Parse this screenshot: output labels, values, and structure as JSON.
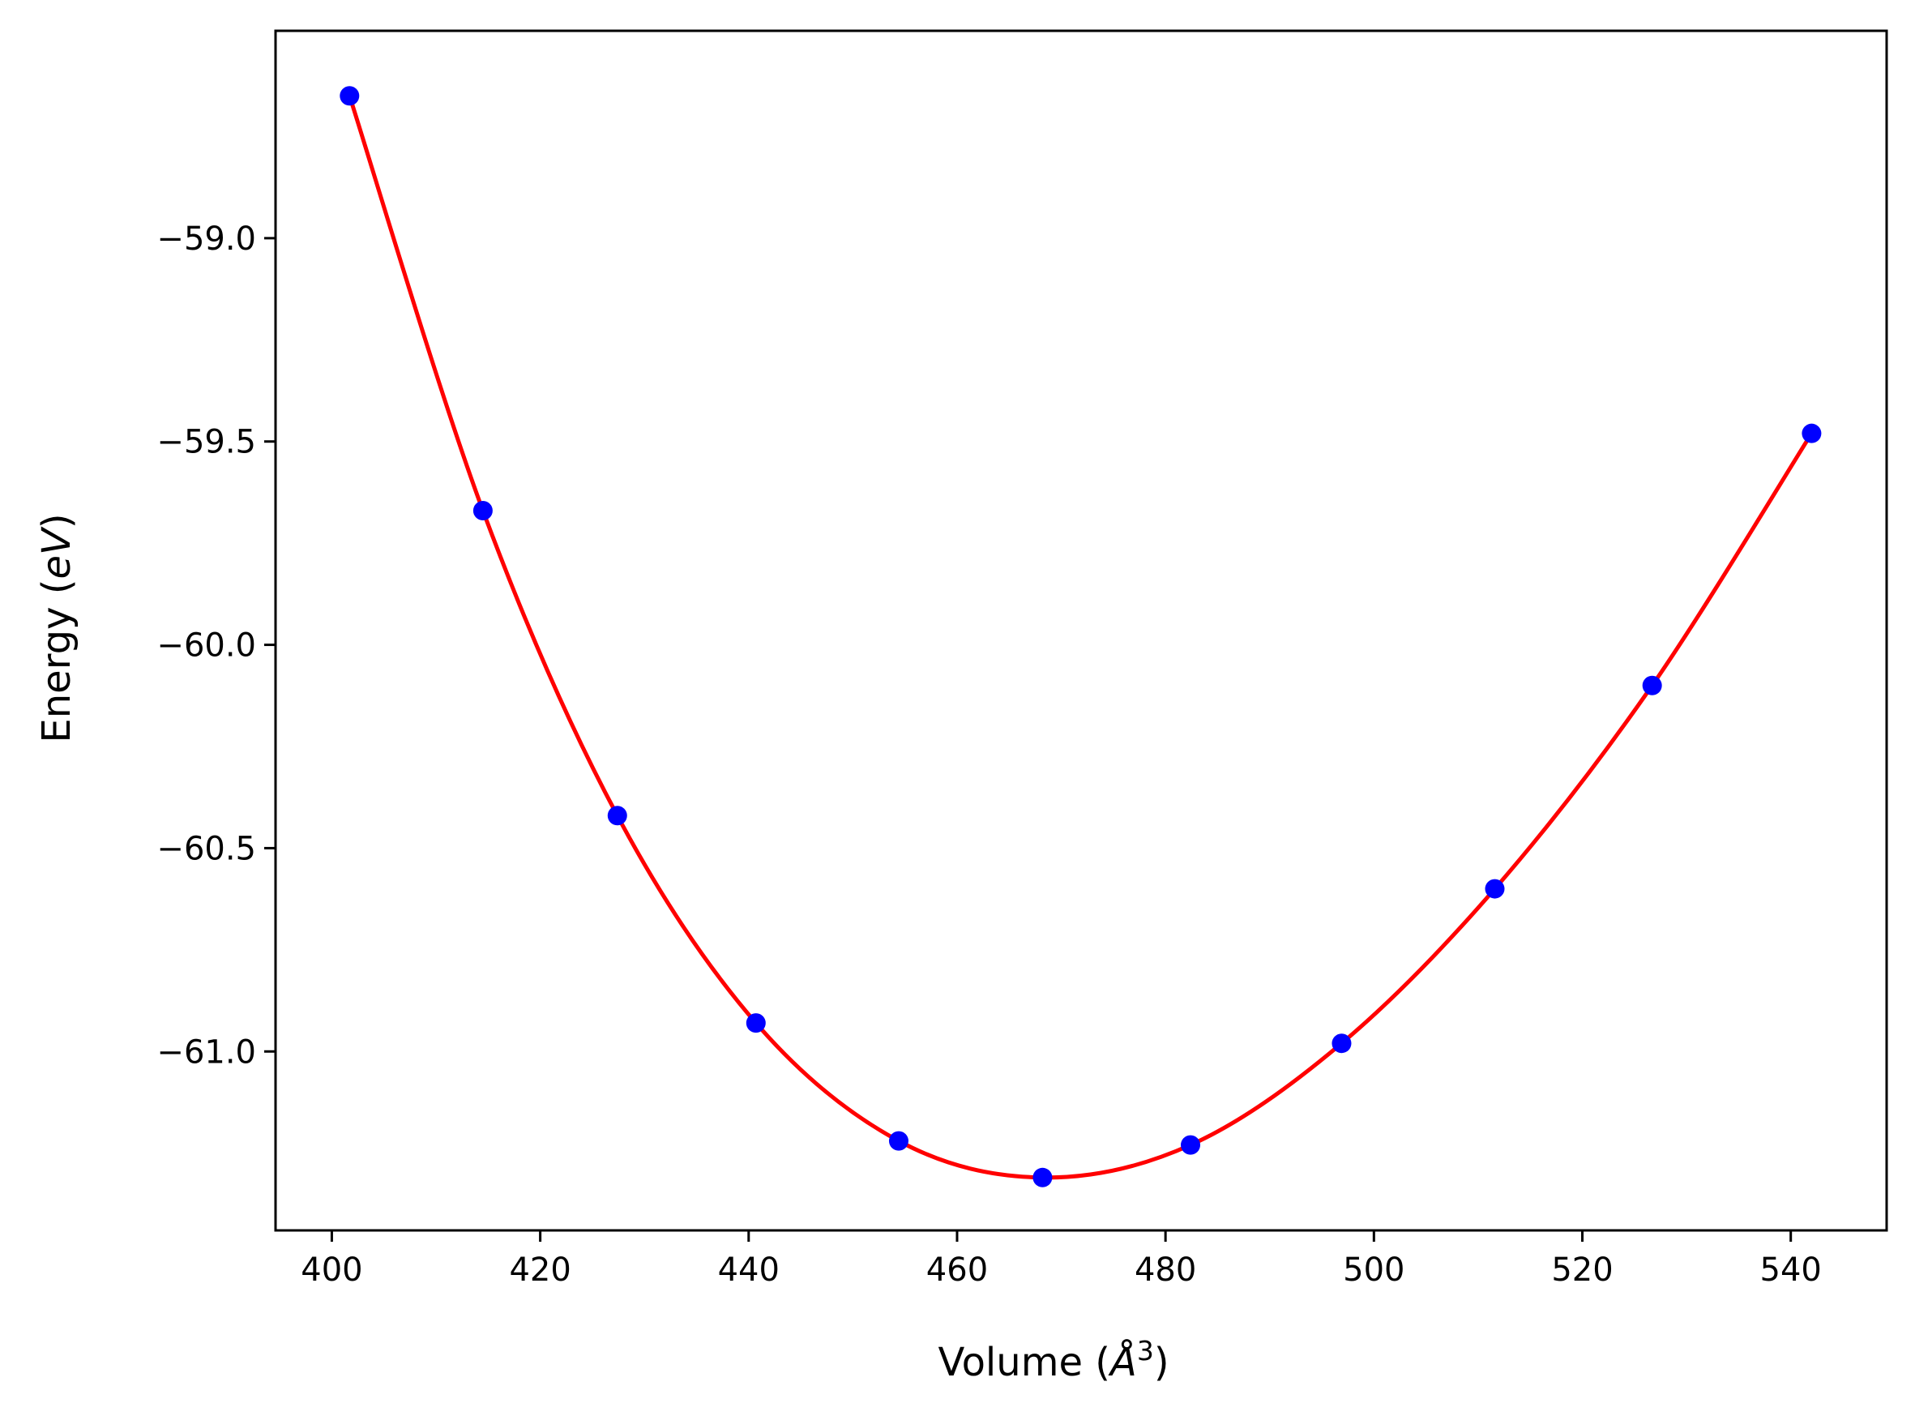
{
  "chart_data": {
    "type": "scatter",
    "title": "",
    "xlabel": "Volume (Å³)",
    "xlabel_parts": {
      "prefix": "Volume (",
      "symbol": "Å",
      "power": "3",
      "suffix": ")"
    },
    "ylabel": "Energy (eV)",
    "ylabel_parts": {
      "prefix": "Energy (",
      "unit": "eV",
      "suffix": ")"
    },
    "xlim": [
      394.6,
      549.2
    ],
    "ylim": [
      -61.44,
      -58.49
    ],
    "x_ticks": [
      400,
      420,
      440,
      460,
      480,
      500,
      520,
      540
    ],
    "x_tick_labels": [
      "400",
      "420",
      "440",
      "460",
      "480",
      "500",
      "520",
      "540"
    ],
    "y_ticks": [
      -59.0,
      -59.5,
      -60.0,
      -60.5,
      -61.0
    ],
    "y_tick_labels": [
      "−59.0",
      "−59.5",
      "−60.0",
      "−60.5",
      "−61.0"
    ],
    "grid": false,
    "legend": "none",
    "series": [
      {
        "style": "markers",
        "color": "#0000ff",
        "x": [
          401.7,
          414.5,
          427.4,
          440.7,
          454.4,
          468.2,
          482.4,
          496.9,
          511.6,
          526.7,
          542.0
        ],
        "y": [
          -58.65,
          -59.67,
          -60.42,
          -60.93,
          -61.22,
          -61.31,
          -61.23,
          -60.98,
          -60.6,
          -60.1,
          -59.48
        ]
      },
      {
        "style": "line",
        "color": "#ff0000",
        "fit": "smooth",
        "x": [
          401.7,
          414.5,
          427.4,
          440.7,
          454.4,
          468.2,
          482.4,
          496.9,
          511.6,
          526.7,
          542.0
        ],
        "y": [
          -58.65,
          -59.67,
          -60.42,
          -60.93,
          -61.22,
          -61.31,
          -61.23,
          -60.98,
          -60.6,
          -60.1,
          -59.48
        ]
      }
    ]
  }
}
